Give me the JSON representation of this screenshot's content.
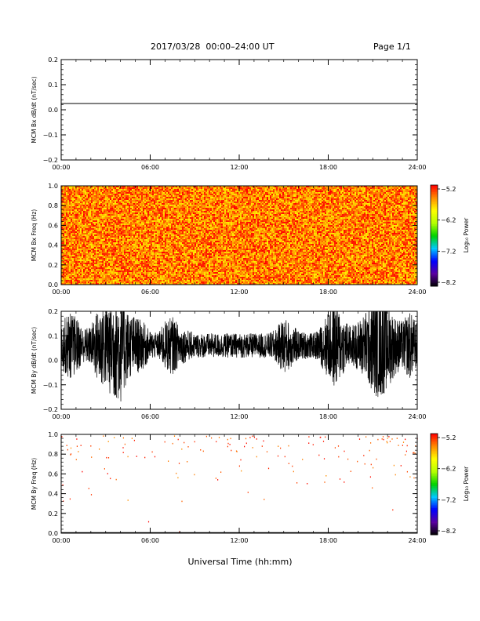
{
  "header": {
    "title": "2017/03/28  00:00–24:00 UT",
    "page": "Page 1/1"
  },
  "footer": {
    "xlabel": "Universal Time (hh:mm)"
  },
  "colors": {
    "line": "#000000",
    "spectrum_scale": [
      "#000000",
      "#5a00a0",
      "#0000ff",
      "#00c8ff",
      "#00d200",
      "#b4ff00",
      "#ffff00",
      "#ff8c00",
      "#ff0000"
    ]
  },
  "chart_data": [
    {
      "type": "line",
      "ylabel": "MCM Bx dB/dt (nT/sec)",
      "xlim": [
        0,
        24
      ],
      "ylim": [
        -0.2,
        0.2
      ],
      "x_ticks": [
        "00:00",
        "06:00",
        "12:00",
        "18:00",
        "24:00"
      ],
      "y_ticks": [
        "−0.2",
        "−0.1",
        "0.0",
        "0.1",
        "0.2"
      ],
      "series": [
        {
          "x": [
            0,
            24
          ],
          "y": [
            0.025,
            0.025
          ]
        }
      ]
    },
    {
      "type": "heatmap",
      "ylabel": "MCM Bx Freq (Hz)",
      "xlim": [
        0,
        24
      ],
      "ylim": [
        0,
        1.0
      ],
      "x_ticks": [
        "00:00",
        "06:00",
        "12:00",
        "18:00",
        "24:00"
      ],
      "y_ticks": [
        "0.0",
        "0.2",
        "0.4",
        "0.6",
        "0.8",
        "1.0"
      ],
      "colorbar": {
        "label": "Log₁₀ Power",
        "range": [
          -8.2,
          -5.2
        ],
        "ticks": [
          "−5.2",
          "−6.2",
          "−7.2",
          "−8.2"
        ]
      },
      "dominant_range": [
        -5.9,
        -5.2
      ]
    },
    {
      "type": "line",
      "ylabel": "MCM By dB/dt (nT/sec)",
      "xlim": [
        0,
        24
      ],
      "ylim": [
        -0.2,
        0.2
      ],
      "x_ticks": [
        "00:00",
        "06:00",
        "12:00",
        "18:00",
        "24:00"
      ],
      "y_ticks": [
        "−0.2",
        "−0.1",
        "0.0",
        "0.1",
        "0.2"
      ],
      "baseline": 0.06,
      "amplitude_envelope": {
        "hour": [
          0,
          0.5,
          1,
          1.5,
          2,
          2.5,
          3,
          3.5,
          4,
          4.5,
          5,
          5.5,
          6,
          6.5,
          7,
          7.5,
          8,
          9,
          10,
          11,
          12,
          13,
          14,
          14.5,
          15,
          15.5,
          16,
          17,
          17.5,
          18,
          18.5,
          19,
          19.5,
          20,
          20.5,
          21,
          21.5,
          22,
          22.5,
          23,
          23.5,
          24
        ],
        "amplitude": [
          0.09,
          0.14,
          0.12,
          0.07,
          0.08,
          0.16,
          0.18,
          0.22,
          0.24,
          0.14,
          0.12,
          0.1,
          0.06,
          0.05,
          0.1,
          0.12,
          0.08,
          0.05,
          0.05,
          0.05,
          0.05,
          0.05,
          0.05,
          0.07,
          0.12,
          0.09,
          0.06,
          0.05,
          0.08,
          0.14,
          0.18,
          0.12,
          0.08,
          0.1,
          0.14,
          0.2,
          0.22,
          0.18,
          0.12,
          0.1,
          0.14,
          0.09
        ]
      }
    },
    {
      "type": "scatter",
      "ylabel": "MCM By Freq (Hz)",
      "xlim": [
        0,
        24
      ],
      "ylim": [
        0,
        1.0
      ],
      "x_ticks": [
        "00:00",
        "06:00",
        "12:00",
        "18:00",
        "24:00"
      ],
      "y_ticks": [
        "0.0",
        "0.2",
        "0.4",
        "0.6",
        "0.8",
        "1.0"
      ],
      "colorbar": {
        "label": "Log₁₀ Power",
        "range": [
          -8.2,
          -5.2
        ],
        "ticks": [
          "−5.2",
          "−6.2",
          "−7.2",
          "−8.2"
        ]
      },
      "dominant_range": [
        -5.6,
        -5.2
      ],
      "density_by_frequency": {
        "freq": [
          0.1,
          0.3,
          0.5,
          0.7,
          0.9,
          1.0
        ],
        "relative_density": [
          0.02,
          0.05,
          0.12,
          0.25,
          0.6,
          1.0
        ]
      }
    }
  ]
}
